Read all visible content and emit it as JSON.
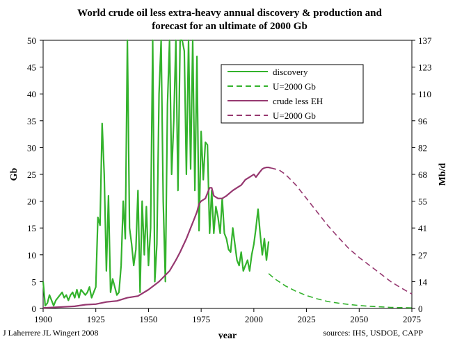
{
  "chart_data": {
    "type": "line",
    "title": "World crude oil less extra-heavy annual discovery & production and",
    "subtitle": "forecast for an ultimate of 2000 Gb",
    "xlabel": "year",
    "ylabel": "Gb",
    "ylabel_right": "Mb/d",
    "xlim": [
      1900,
      2075
    ],
    "ylim": [
      0,
      50
    ],
    "x_ticks": [
      "1900",
      "1925",
      "1950",
      "1975",
      "2000",
      "2025",
      "2050",
      "2075"
    ],
    "y_ticks_left": [
      "0",
      "5",
      "10",
      "15",
      "20",
      "25",
      "30",
      "35",
      "40",
      "45",
      "50"
    ],
    "y_ticks_right": [
      "0",
      "14",
      "27",
      "41",
      "55",
      "68",
      "82",
      "96",
      "110",
      "123",
      "137"
    ],
    "grid": false,
    "legend_position": "top-right",
    "credit_left": "J Laherrere JL Wingert 2008",
    "credit_right": "sources: IHS, USDOE, CAPP",
    "colors": {
      "discovery": "#33b22c",
      "production": "#963870"
    },
    "series": [
      {
        "name": "discovery",
        "style": "solid",
        "color": "#33b22c",
        "x": [
          1900,
          1901,
          1902,
          1903,
          1904,
          1905,
          1906,
          1907,
          1908,
          1909,
          1910,
          1911,
          1912,
          1913,
          1914,
          1915,
          1916,
          1917,
          1918,
          1919,
          1920,
          1921,
          1922,
          1923,
          1924,
          1925,
          1926,
          1927,
          1928,
          1929,
          1930,
          1931,
          1932,
          1933,
          1934,
          1935,
          1936,
          1937,
          1938,
          1939,
          1940,
          1941,
          1942,
          1943,
          1944,
          1945,
          1946,
          1947,
          1948,
          1949,
          1950,
          1951,
          1952,
          1953,
          1954,
          1955,
          1956,
          1957,
          1958,
          1959,
          1960,
          1961,
          1962,
          1963,
          1964,
          1965,
          1966,
          1967,
          1968,
          1969,
          1970,
          1971,
          1972,
          1973,
          1974,
          1975,
          1976,
          1977,
          1978,
          1979,
          1980,
          1981,
          1982,
          1983,
          1984,
          1985,
          1986,
          1987,
          1988,
          1989,
          1990,
          1991,
          1992,
          1993,
          1994,
          1995,
          1996,
          1997,
          1998,
          1999,
          2000,
          2001,
          2002,
          2003,
          2004,
          2005,
          2006,
          2007
        ],
        "values": [
          5,
          0.5,
          1,
          2.5,
          1.5,
          0.5,
          1.5,
          2,
          2.5,
          3,
          2,
          2.5,
          1.5,
          2.5,
          3,
          2,
          3.5,
          2,
          3.5,
          3,
          2.5,
          3,
          4,
          2,
          3,
          4,
          17,
          15.5,
          34.5,
          25,
          7,
          21,
          3,
          5.5,
          4,
          2.5,
          3,
          8,
          20,
          13,
          50,
          15,
          12,
          8,
          11,
          22,
          3,
          20,
          10,
          19,
          8,
          15,
          50,
          5,
          12,
          40,
          50,
          20,
          5,
          38,
          50,
          25,
          35,
          50,
          22,
          50,
          50,
          48,
          25,
          50,
          26,
          50,
          22,
          47,
          14.5,
          33,
          24,
          31,
          30.5,
          14,
          22,
          14,
          19,
          17,
          14,
          20.5,
          14,
          13,
          11,
          10.5,
          15,
          12,
          9,
          8,
          10.5,
          7,
          8,
          9,
          7,
          10,
          12,
          15,
          18.5,
          14,
          10,
          13,
          9,
          12.5
        ]
      },
      {
        "name": "U=2000 Gb",
        "style": "dashed",
        "color": "#33b22c",
        "x": [
          2007,
          2010,
          2015,
          2020,
          2025,
          2030,
          2035,
          2040,
          2045,
          2050,
          2055,
          2060,
          2065,
          2070,
          2075
        ],
        "values": [
          6.5,
          5.5,
          4.2,
          3.2,
          2.4,
          1.8,
          1.3,
          1,
          0.75,
          0.55,
          0.4,
          0.3,
          0.2,
          0.15,
          0.1
        ]
      },
      {
        "name": "crude less EH",
        "style": "solid",
        "color": "#963870",
        "x": [
          1900,
          1905,
          1910,
          1915,
          1920,
          1925,
          1930,
          1935,
          1940,
          1945,
          1950,
          1955,
          1960,
          1963,
          1965,
          1968,
          1970,
          1972,
          1973,
          1974,
          1975,
          1977,
          1979,
          1980,
          1981,
          1983,
          1985,
          1987,
          1990,
          1992,
          1994,
          1996,
          1998,
          2000,
          2001,
          2003,
          2004,
          2005,
          2006,
          2007,
          2008
        ],
        "values": [
          0.1,
          0.2,
          0.3,
          0.4,
          0.7,
          0.8,
          1.2,
          1.4,
          2.0,
          2.3,
          3.5,
          5,
          7,
          9,
          10.5,
          13,
          15,
          17,
          18,
          19.5,
          20,
          20.5,
          22.5,
          22.5,
          21,
          20.5,
          20.5,
          21,
          22,
          22.5,
          23,
          24,
          24.5,
          25,
          24.5,
          25.5,
          26,
          26.2,
          26.3,
          26.3,
          26.2
        ]
      },
      {
        "name": "U=2000 Gb",
        "style": "dashed",
        "color": "#963870",
        "x": [
          2008,
          2012,
          2015,
          2020,
          2025,
          2030,
          2035,
          2040,
          2045,
          2050,
          2055,
          2060,
          2065,
          2070,
          2075
        ],
        "values": [
          26.2,
          25.8,
          25,
          23,
          20.5,
          18,
          15.5,
          13.3,
          11.2,
          9.5,
          8,
          6.5,
          5,
          3.8,
          2.7
        ]
      }
    ]
  }
}
